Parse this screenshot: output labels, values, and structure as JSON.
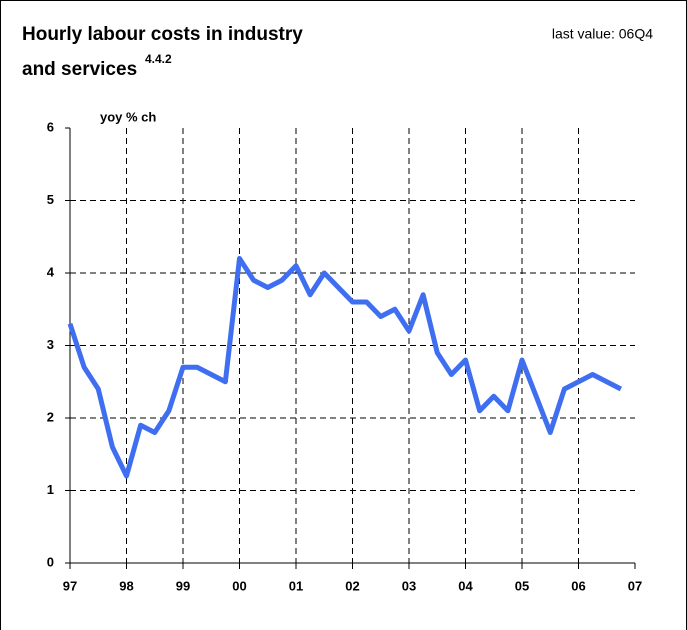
{
  "chart_data": {
    "type": "line",
    "title": [
      "Hourly labour costs in industry",
      "and services"
    ],
    "title_note": "4.4.2",
    "annotation": "last value: 06Q4",
    "ylabel": "yoy % ch",
    "x": [
      1997,
      1997.25,
      1997.5,
      1997.75,
      1998,
      1998.25,
      1998.5,
      1998.75,
      1999,
      1999.25,
      1999.5,
      1999.75,
      2000,
      2000.25,
      2000.5,
      2000.75,
      2001,
      2001.25,
      2001.5,
      2001.75,
      2002,
      2002.25,
      2002.5,
      2002.75,
      2003,
      2003.25,
      2003.5,
      2003.75,
      2004,
      2004.25,
      2004.5,
      2004.75,
      2005,
      2005.25,
      2005.5,
      2005.75,
      2006,
      2006.25,
      2006.5,
      2006.75
    ],
    "series": [
      {
        "color": "#3f6ff0",
        "values": [
          3.3,
          2.7,
          2.4,
          1.6,
          1.2,
          1.9,
          1.8,
          2.1,
          2.7,
          2.7,
          2.6,
          2.5,
          4.2,
          3.9,
          3.8,
          3.9,
          4.1,
          3.7,
          4.0,
          3.8,
          3.6,
          3.6,
          3.4,
          3.5,
          3.2,
          3.7,
          2.9,
          2.6,
          2.8,
          2.1,
          2.3,
          2.1,
          2.8,
          2.3,
          1.8,
          2.4,
          2.5,
          2.6,
          2.5,
          2.4
        ]
      }
    ],
    "xlim": [
      1997,
      2007
    ],
    "xticks": [
      {
        "value": 1997,
        "label": "97"
      },
      {
        "value": 1998,
        "label": "98"
      },
      {
        "value": 1999,
        "label": "99"
      },
      {
        "value": 2000,
        "label": "00"
      },
      {
        "value": 2001,
        "label": "01"
      },
      {
        "value": 2002,
        "label": "02"
      },
      {
        "value": 2003,
        "label": "03"
      },
      {
        "value": 2004,
        "label": "04"
      },
      {
        "value": 2005,
        "label": "05"
      },
      {
        "value": 2006,
        "label": "06"
      },
      {
        "value": 2007,
        "label": "07"
      }
    ],
    "ylim": [
      0,
      6
    ],
    "yticks": [
      0,
      1,
      2,
      3,
      4,
      5,
      6
    ],
    "grid": true
  }
}
